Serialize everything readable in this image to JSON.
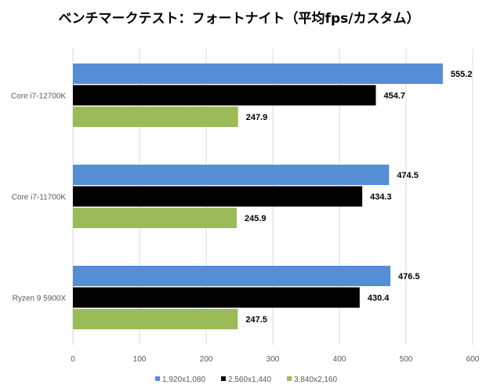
{
  "chart_data": {
    "type": "bar",
    "orientation": "horizontal",
    "title": "ベンチマークテスト：フォートナイト（平均fps/カスタム）",
    "categories": [
      "Core i7-12700K",
      "Core i7-11700K",
      "Ryzen 9 5900X"
    ],
    "series": [
      {
        "name": "1,920x1,080",
        "color": "#558ED5",
        "values": [
          555.2,
          474.5,
          476.5
        ]
      },
      {
        "name": "2,560x1,440",
        "color": "#000000",
        "values": [
          454.7,
          434.3,
          430.4
        ]
      },
      {
        "name": "3,840x2,160",
        "color": "#9BBB59",
        "values": [
          247.9,
          245.9,
          247.5
        ]
      }
    ],
    "xlim": [
      0,
      600
    ],
    "xticks": [
      0,
      100,
      200,
      300,
      400,
      500,
      600
    ],
    "grid": true,
    "legend": "bottom",
    "xlabel": "",
    "ylabel": ""
  }
}
